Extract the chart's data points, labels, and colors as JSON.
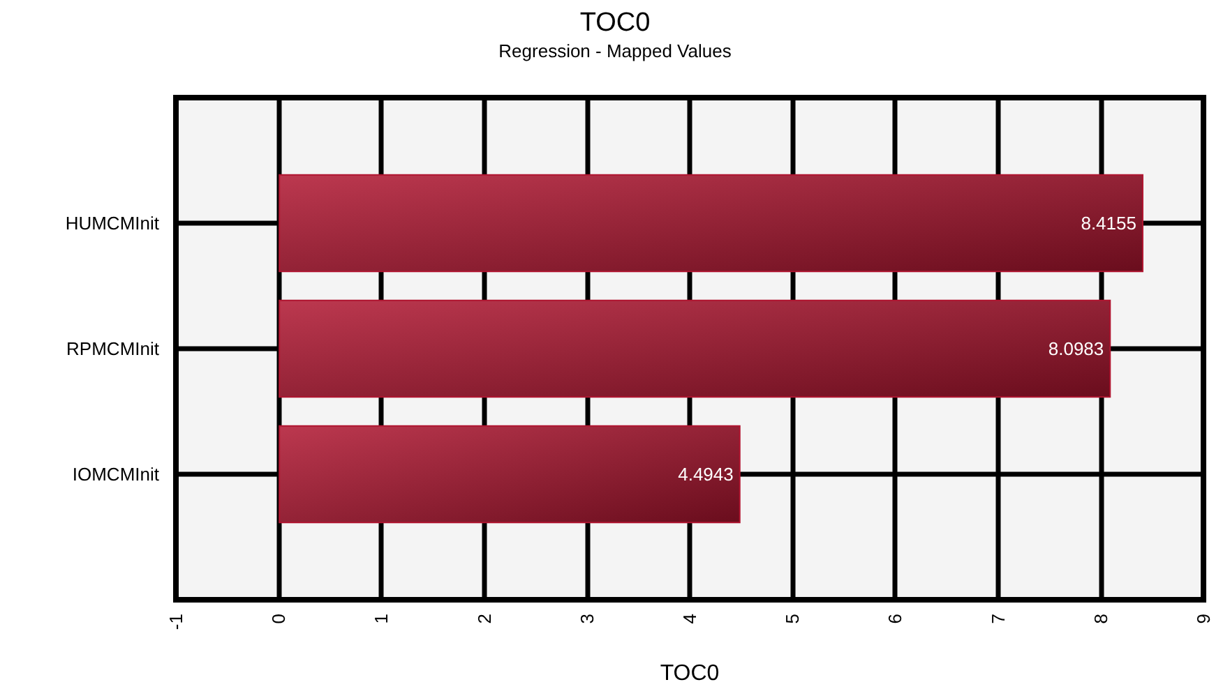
{
  "chart_data": {
    "type": "bar",
    "orientation": "horizontal",
    "title": "TOC0",
    "subtitle": "Regression - Mapped Values",
    "xlabel": "TOC0",
    "categories": [
      "HUMCMInit",
      "RPMCMInit",
      "IOMCMInit"
    ],
    "values": [
      8.4155,
      8.0983,
      4.4943
    ],
    "color": "#b01530",
    "xlim": [
      -1,
      9
    ],
    "xticks": [
      -1,
      0,
      1,
      2,
      3,
      4,
      5,
      6,
      7,
      8,
      9
    ],
    "grid": true,
    "data_labels": true
  }
}
